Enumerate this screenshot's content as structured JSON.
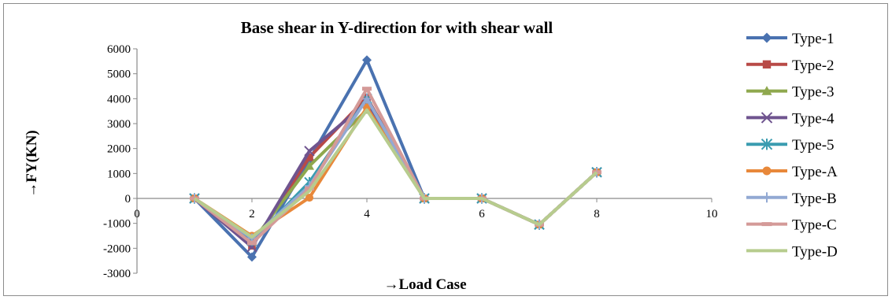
{
  "chart_data": {
    "type": "line",
    "title": "Base shear in Y-direction for with shear wall",
    "xlabel": "→Load Case",
    "ylabel": "→FY(KN)",
    "xlim": [
      0,
      10
    ],
    "ylim": [
      -3000,
      6000
    ],
    "xticks": [
      "0",
      "2",
      "4",
      "6",
      "8",
      "10"
    ],
    "yticks": [
      "-3000",
      "-2000",
      "-1000",
      "0",
      "1000",
      "2000",
      "3000",
      "4000",
      "5000",
      "6000"
    ],
    "grid": false,
    "legend": "right",
    "x": [
      1,
      2,
      3,
      4,
      5,
      6,
      7,
      8
    ],
    "series": [
      {
        "name": "Type-1",
        "color": "#4a72b0",
        "marker": "diamond",
        "values": [
          0,
          -2350,
          1550,
          5550,
          0,
          0,
          -1050,
          1050
        ]
      },
      {
        "name": "Type-2",
        "color": "#b84a47",
        "marker": "square",
        "values": [
          0,
          -1900,
          1650,
          4050,
          0,
          0,
          -1050,
          1050
        ]
      },
      {
        "name": "Type-3",
        "color": "#8fa84e",
        "marker": "triangle",
        "values": [
          0,
          -1750,
          1300,
          3550,
          0,
          0,
          -1050,
          1050
        ]
      },
      {
        "name": "Type-4",
        "color": "#6f548f",
        "marker": "x",
        "values": [
          0,
          -1950,
          1900,
          3850,
          0,
          0,
          -1050,
          1050
        ]
      },
      {
        "name": "Type-5",
        "color": "#3a9cb0",
        "marker": "star",
        "values": [
          0,
          -1700,
          650,
          4000,
          0,
          0,
          -1050,
          1050
        ]
      },
      {
        "name": "Type-A",
        "color": "#e8883a",
        "marker": "circle",
        "values": [
          0,
          -1500,
          30,
          3650,
          0,
          0,
          -1050,
          1050
        ]
      },
      {
        "name": "Type-B",
        "color": "#92a9d3",
        "marker": "plus",
        "values": [
          0,
          -1600,
          500,
          4000,
          0,
          0,
          -1050,
          1050
        ]
      },
      {
        "name": "Type-C",
        "color": "#d49a98",
        "marker": "dash",
        "values": [
          0,
          -1800,
          400,
          4400,
          0,
          0,
          -1050,
          1050
        ]
      },
      {
        "name": "Type-D",
        "color": "#b7cc8e",
        "marker": "none",
        "values": [
          0,
          -1550,
          300,
          3550,
          0,
          0,
          -1050,
          1050
        ]
      }
    ]
  }
}
